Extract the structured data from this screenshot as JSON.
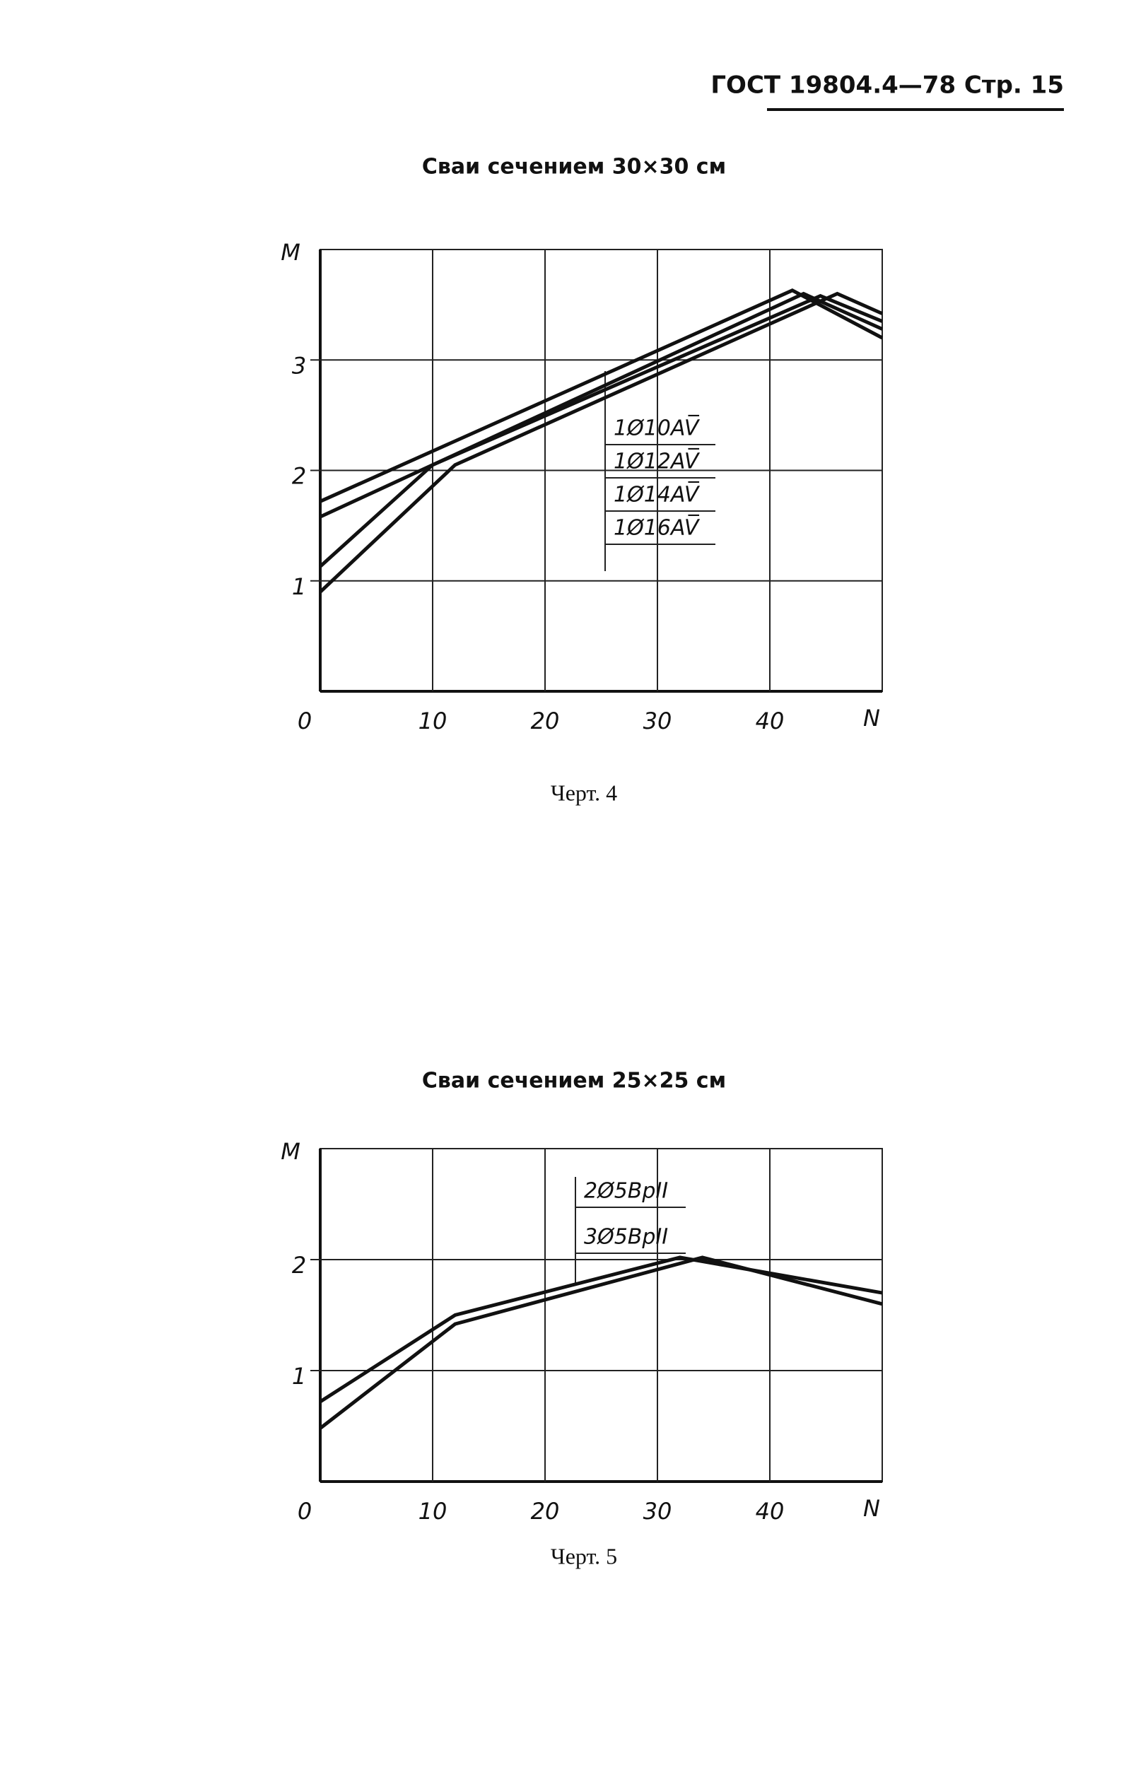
{
  "header": {
    "text": "ГОСТ 19804.4—78 Стр. 15"
  },
  "chart_data": [
    {
      "type": "line",
      "title": "Сваи сечением 30×30 см",
      "caption": "Черт. 4",
      "y_label": "M",
      "x_label": "N",
      "xlim": [
        0,
        50
      ],
      "xticks": [
        0,
        10,
        20,
        30,
        40
      ],
      "ylim": [
        0,
        4
      ],
      "yticks": [
        1,
        2,
        3
      ],
      "grid": true,
      "series": [
        {
          "name": "1Ø10AV̅",
          "color": "#111111",
          "x": [
            0,
            42,
            50
          ],
          "values": [
            1.72,
            3.63,
            3.2
          ]
        },
        {
          "name": "1Ø12AV̅",
          "color": "#111111",
          "x": [
            0,
            43,
            50
          ],
          "values": [
            1.58,
            3.6,
            3.28
          ]
        },
        {
          "name": "1Ø14AV̅",
          "color": "#111111",
          "x": [
            0,
            10,
            44.5,
            50
          ],
          "values": [
            1.13,
            2.05,
            3.58,
            3.35
          ]
        },
        {
          "name": "1Ø16AV̅",
          "color": "#111111",
          "x": [
            0,
            12,
            46,
            50
          ],
          "values": [
            0.9,
            2.05,
            3.6,
            3.42
          ]
        }
      ]
    },
    {
      "type": "line",
      "title": "Сваи сечением 25×25 см",
      "caption": "Черт. 5",
      "y_label": "M",
      "x_label": "N",
      "xlim": [
        0,
        50
      ],
      "xticks": [
        0,
        10,
        20,
        30,
        40
      ],
      "ylim": [
        0,
        3
      ],
      "yticks": [
        1,
        2
      ],
      "grid": true,
      "series": [
        {
          "name": "2Ø5ВрII",
          "color": "#111111",
          "x": [
            0,
            12,
            32,
            50
          ],
          "values": [
            0.72,
            1.5,
            2.02,
            1.7
          ]
        },
        {
          "name": "3Ø5ВрII",
          "color": "#111111",
          "x": [
            0,
            12,
            34,
            50
          ],
          "values": [
            0.48,
            1.42,
            2.02,
            1.6
          ]
        }
      ]
    }
  ]
}
